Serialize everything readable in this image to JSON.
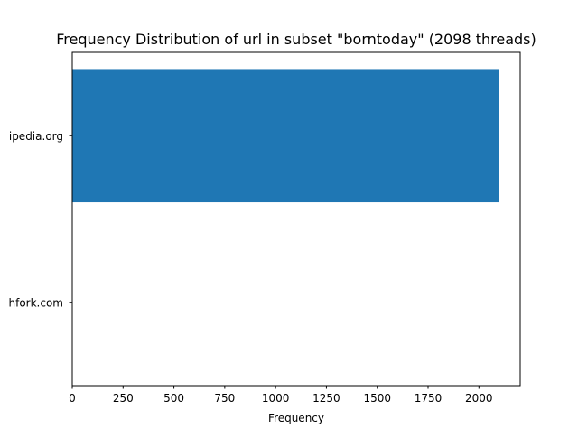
{
  "chart_data": {
    "type": "bar",
    "orientation": "horizontal",
    "title": "Frequency Distribution of url in subset \"borntoday\" (2098 threads)",
    "xlabel": "Frequency",
    "ylabel": "",
    "categories": [
      "ipedia.org",
      "hfork.com"
    ],
    "values": [
      2098,
      0
    ],
    "xlim": [
      0,
      2203
    ],
    "xticks": [
      0,
      250,
      500,
      750,
      1000,
      1250,
      1500,
      1750,
      2000
    ],
    "grid": false,
    "legend": "none",
    "bar_color": "#1f77b4"
  }
}
